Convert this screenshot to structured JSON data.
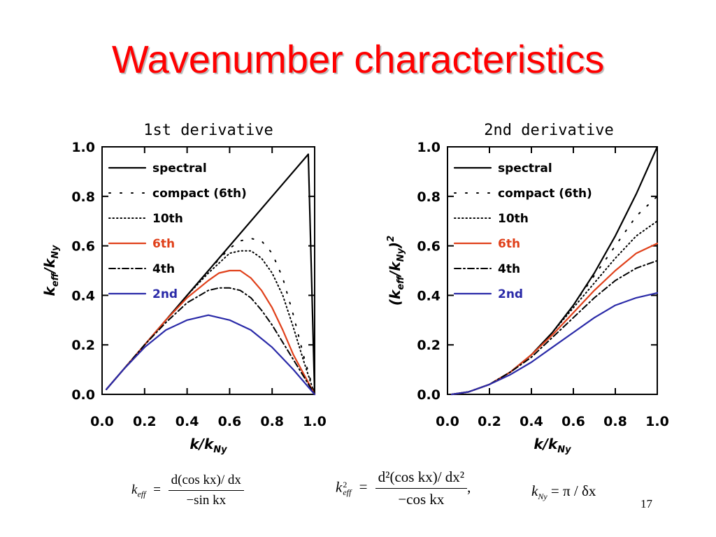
{
  "slide": {
    "title": "Wavenumber characteristics",
    "page_number": "17"
  },
  "formulas": {
    "first": {
      "lhs": "k",
      "lhs_sub": "eff",
      "num": "d(cos kx)/ dx",
      "den": "−sin kx"
    },
    "second": {
      "lhs": "k",
      "lhs_sup": "2",
      "lhs_sub": "eff",
      "num": "d²(cos kx)/ dx²",
      "den": "−cos kx",
      "trail": ","
    },
    "nyquist": {
      "lhs": "k",
      "lhs_sub": "Ny",
      "rhs": "= π / δx"
    }
  },
  "chart_data": [
    {
      "type": "line",
      "title": "1st derivative",
      "xlabel": "k/k",
      "xlabel_sub": "Ny",
      "ylabel": "k",
      "ylabel_sub1": "eff",
      "ylabel_mid": "/k",
      "ylabel_sub2": "Ny",
      "xlim": [
        0,
        1
      ],
      "ylim": [
        0,
        1
      ],
      "xticks": [
        "0.0",
        "0.2",
        "0.4",
        "0.6",
        "0.8",
        "1.0"
      ],
      "yticks": [
        "0.0",
        "0.2",
        "0.4",
        "0.6",
        "0.8",
        "1.0"
      ],
      "legend_position": "top-left",
      "series": [
        {
          "name": "spectral",
          "color": "#000000",
          "style": "solid",
          "x": [
            0.02,
            0.2,
            0.4,
            0.6,
            0.8,
            0.97,
            1.0
          ],
          "y": [
            0.02,
            0.2,
            0.4,
            0.6,
            0.8,
            0.97,
            0.0
          ]
        },
        {
          "name": "compact (6th)",
          "color": "#000000",
          "style": "sparse-dot",
          "x": [
            0.02,
            0.1,
            0.2,
            0.3,
            0.4,
            0.5,
            0.6,
            0.65,
            0.7,
            0.75,
            0.8,
            0.85,
            0.9,
            0.95,
            1.0
          ],
          "y": [
            0.02,
            0.1,
            0.2,
            0.3,
            0.4,
            0.5,
            0.59,
            0.62,
            0.63,
            0.62,
            0.57,
            0.47,
            0.32,
            0.15,
            0.0
          ]
        },
        {
          "name": "10th",
          "color": "#000000",
          "style": "dotted",
          "x": [
            0.02,
            0.1,
            0.2,
            0.3,
            0.4,
            0.5,
            0.55,
            0.6,
            0.65,
            0.7,
            0.75,
            0.8,
            0.85,
            0.9,
            0.95,
            1.0
          ],
          "y": [
            0.02,
            0.1,
            0.2,
            0.3,
            0.4,
            0.49,
            0.53,
            0.57,
            0.58,
            0.58,
            0.55,
            0.49,
            0.4,
            0.27,
            0.13,
            0.0
          ]
        },
        {
          "name": "6th",
          "color": "#e0401a",
          "style": "solid",
          "x": [
            0.02,
            0.1,
            0.2,
            0.3,
            0.4,
            0.5,
            0.55,
            0.6,
            0.65,
            0.7,
            0.75,
            0.8,
            0.85,
            0.9,
            0.95,
            1.0
          ],
          "y": [
            0.02,
            0.1,
            0.2,
            0.3,
            0.39,
            0.46,
            0.49,
            0.5,
            0.5,
            0.47,
            0.42,
            0.35,
            0.26,
            0.16,
            0.08,
            0.0
          ]
        },
        {
          "name": "4th",
          "color": "#000000",
          "style": "dashdot",
          "x": [
            0.02,
            0.1,
            0.2,
            0.3,
            0.4,
            0.5,
            0.55,
            0.6,
            0.65,
            0.7,
            0.75,
            0.8,
            0.85,
            0.9,
            0.95,
            1.0
          ],
          "y": [
            0.02,
            0.1,
            0.2,
            0.29,
            0.37,
            0.42,
            0.43,
            0.43,
            0.42,
            0.39,
            0.34,
            0.28,
            0.21,
            0.14,
            0.07,
            0.0
          ]
        },
        {
          "name": "2nd",
          "color": "#2a2aa8",
          "style": "solid",
          "x": [
            0.02,
            0.1,
            0.2,
            0.3,
            0.4,
            0.5,
            0.6,
            0.7,
            0.8,
            0.9,
            1.0
          ],
          "y": [
            0.02,
            0.1,
            0.19,
            0.26,
            0.3,
            0.32,
            0.3,
            0.26,
            0.19,
            0.1,
            0.0
          ]
        }
      ]
    },
    {
      "type": "line",
      "title": "2nd derivative",
      "xlabel": "k/k",
      "xlabel_sub": "Ny",
      "ylabel": "(k",
      "ylabel_sub1": "eff",
      "ylabel_mid": "/k",
      "ylabel_sub2": "Ny",
      "ylabel_tail": ")",
      "ylabel_sup": "2",
      "xlim": [
        0,
        1
      ],
      "ylim": [
        0,
        1
      ],
      "xticks": [
        "0.0",
        "0.2",
        "0.4",
        "0.6",
        "0.8",
        "1.0"
      ],
      "yticks": [
        "0.0",
        "0.2",
        "0.4",
        "0.6",
        "0.8",
        "1.0"
      ],
      "legend_position": "top-left",
      "series": [
        {
          "name": "spectral",
          "color": "#000000",
          "style": "solid",
          "x": [
            0.02,
            0.1,
            0.2,
            0.3,
            0.4,
            0.5,
            0.6,
            0.7,
            0.8,
            0.9,
            1.0
          ],
          "y": [
            0.0,
            0.01,
            0.04,
            0.09,
            0.16,
            0.25,
            0.36,
            0.49,
            0.64,
            0.81,
            1.0
          ]
        },
        {
          "name": "compact (6th)",
          "color": "#000000",
          "style": "sparse-dot",
          "x": [
            0.02,
            0.1,
            0.2,
            0.3,
            0.4,
            0.5,
            0.6,
            0.7,
            0.8,
            0.9,
            1.0
          ],
          "y": [
            0.0,
            0.01,
            0.04,
            0.09,
            0.16,
            0.25,
            0.36,
            0.48,
            0.6,
            0.72,
            0.8
          ]
        },
        {
          "name": "10th",
          "color": "#000000",
          "style": "dotted",
          "x": [
            0.02,
            0.1,
            0.2,
            0.3,
            0.4,
            0.5,
            0.6,
            0.7,
            0.8,
            0.9,
            1.0
          ],
          "y": [
            0.0,
            0.01,
            0.04,
            0.09,
            0.16,
            0.25,
            0.35,
            0.45,
            0.55,
            0.64,
            0.7
          ]
        },
        {
          "name": "6th",
          "color": "#e0401a",
          "style": "solid",
          "x": [
            0.02,
            0.1,
            0.2,
            0.3,
            0.4,
            0.5,
            0.6,
            0.7,
            0.8,
            0.9,
            1.0
          ],
          "y": [
            0.0,
            0.01,
            0.04,
            0.09,
            0.16,
            0.24,
            0.33,
            0.42,
            0.5,
            0.57,
            0.61
          ]
        },
        {
          "name": "4th",
          "color": "#000000",
          "style": "dashdot",
          "x": [
            0.02,
            0.1,
            0.2,
            0.3,
            0.4,
            0.5,
            0.6,
            0.7,
            0.8,
            0.9,
            1.0
          ],
          "y": [
            0.0,
            0.01,
            0.04,
            0.09,
            0.15,
            0.23,
            0.31,
            0.39,
            0.46,
            0.51,
            0.54
          ]
        },
        {
          "name": "2nd",
          "color": "#2a2aa8",
          "style": "solid",
          "x": [
            0.02,
            0.1,
            0.2,
            0.3,
            0.4,
            0.5,
            0.6,
            0.7,
            0.8,
            0.9,
            1.0
          ],
          "y": [
            0.0,
            0.01,
            0.04,
            0.08,
            0.13,
            0.19,
            0.25,
            0.31,
            0.36,
            0.39,
            0.41
          ]
        }
      ]
    }
  ]
}
